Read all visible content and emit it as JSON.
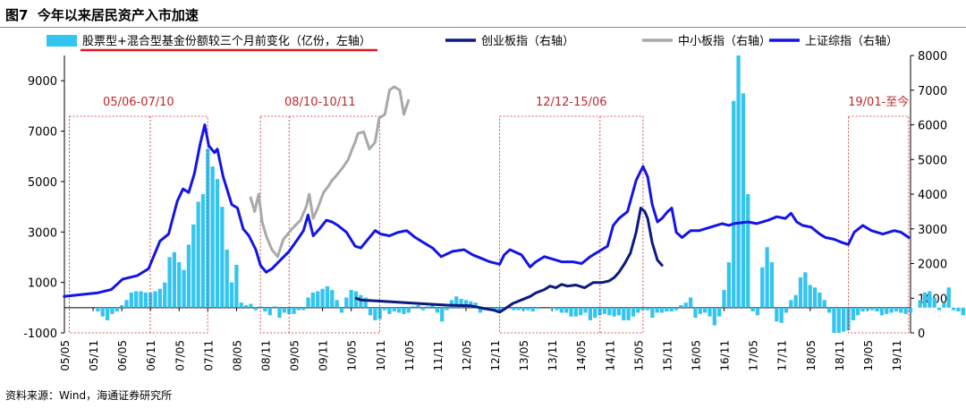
{
  "figure": {
    "title": "图7  今年以来居民资产入市加速",
    "source": "资料来源：Wind，海通证券研究所"
  },
  "chart_data": {
    "type": "bar+line",
    "title": "今年以来居民资产入市加速",
    "x_ticks": [
      "05/05",
      "05/11",
      "06/05",
      "06/11",
      "07/05",
      "07/11",
      "08/05",
      "08/11",
      "09/05",
      "09/11",
      "10/05",
      "10/11",
      "11/05",
      "11/11",
      "12/05",
      "12/11",
      "13/05",
      "13/11",
      "14/05",
      "14/11",
      "15/05",
      "15/11",
      "16/05",
      "16/11",
      "17/05",
      "17/11",
      "18/05",
      "18/11",
      "19/05",
      "19/11"
    ],
    "x_range": [
      2005.333,
      2020.083
    ],
    "left_axis": {
      "label": "亿份，左轴",
      "ylim": [
        -1000,
        10000
      ],
      "ticks": [
        -1000,
        1000,
        3000,
        5000,
        7000,
        9000
      ]
    },
    "right_axis": {
      "label": "右轴",
      "ylim": [
        0,
        8000
      ],
      "ticks": [
        0,
        1000,
        2000,
        3000,
        4000,
        5000,
        6000,
        7000,
        8000
      ]
    },
    "legend": {
      "position": "top",
      "items": [
        {
          "key": "bars",
          "label": "股票型+混合型基金份额较三个月前变化（亿份，左轴）"
        },
        {
          "key": "cyb",
          "label": "创业板指（右轴）"
        },
        {
          "key": "zxb",
          "label": "中小板指（右轴）"
        },
        {
          "key": "szzz",
          "label": "上证综指（右轴）"
        }
      ]
    },
    "colors": {
      "bars": "#33c4ef",
      "cyb": "#0b1a80",
      "zxb": "#a9a9a9",
      "szzz": "#1414e6",
      "box": "#c0282d",
      "annotation": "#c0282d",
      "underline": "#e0181f"
    },
    "annotations": [
      {
        "label": "05/06-07/10",
        "start": 2005.42,
        "end": 2007.83,
        "split": 2006.83
      },
      {
        "label": "08/10-10/11",
        "start": 2008.75,
        "end": 2010.83,
        "split": 2009.25
      },
      {
        "label": "12/12-15/06",
        "start": 2012.92,
        "end": 2015.42,
        "split": 2014.67
      },
      {
        "label": "19/01-至今",
        "start": 2019.0,
        "end": 2020.05,
        "split": null
      }
    ],
    "series": [
      {
        "name": "股票型+混合型基金份额较三个月前变化",
        "key": "bars",
        "axis": "left",
        "type": "bar",
        "x0": 2005.333,
        "step": 0.08333,
        "values": [
          0,
          0,
          0,
          0,
          0,
          0,
          0,
          -150,
          -350,
          -500,
          -250,
          -150,
          100,
          300,
          600,
          650,
          650,
          600,
          600,
          650,
          750,
          1000,
          2000,
          2200,
          1800,
          1500,
          2500,
          3300,
          4200,
          4500,
          6300,
          5600,
          5100,
          4000,
          2300,
          1000,
          1700,
          200,
          100,
          150,
          -100,
          50,
          -150,
          -300,
          50,
          -400,
          -200,
          -250,
          -250,
          -100,
          -100,
          400,
          600,
          650,
          750,
          850,
          700,
          300,
          -200,
          400,
          700,
          650,
          500,
          400,
          -300,
          -500,
          -450,
          -100,
          -250,
          -150,
          -200,
          -250,
          -200,
          50,
          100,
          -100,
          50,
          100,
          -200,
          -550,
          -100,
          300,
          450,
          350,
          300,
          250,
          200,
          -200,
          -100,
          -50,
          -150,
          -150,
          -50,
          0,
          -100,
          -100,
          -100,
          -100,
          -150,
          -50,
          0,
          0,
          -50,
          -100,
          -200,
          -200,
          -350,
          -350,
          -300,
          -200,
          -500,
          -400,
          -300,
          -250,
          -300,
          -350,
          -300,
          -500,
          -500,
          -350,
          -200,
          -100,
          -100,
          -400,
          -200,
          -200,
          -150,
          -150,
          -100,
          100,
          200,
          400,
          -400,
          -250,
          -200,
          -350,
          -700,
          -350,
          700,
          1800,
          8200,
          10000,
          8500,
          4500,
          -150,
          -300,
          1600,
          2400,
          1800,
          -550,
          -600,
          -200,
          300,
          500,
          1200,
          1400,
          900,
          800,
          600,
          300,
          -200,
          -1000,
          -1000,
          -950,
          -900,
          -500,
          -300,
          -150,
          -100,
          -100,
          -150,
          -300,
          -250,
          -200,
          -150,
          -200,
          -250,
          -200,
          0,
          300,
          600,
          650,
          400,
          -100,
          200,
          800,
          -100,
          -150,
          -300,
          -250,
          -300,
          -900,
          -600,
          1200,
          800,
          600,
          1000,
          1200,
          700,
          1200,
          2000,
          3000,
          4500
        ]
      },
      {
        "name": "上证综指",
        "key": "szzz",
        "axis": "right",
        "type": "line",
        "points": [
          [
            2005.33,
            1050
          ],
          [
            2005.6,
            1100
          ],
          [
            2005.9,
            1150
          ],
          [
            2006.15,
            1250
          ],
          [
            2006.35,
            1550
          ],
          [
            2006.6,
            1650
          ],
          [
            2006.8,
            1850
          ],
          [
            2007.0,
            2650
          ],
          [
            2007.15,
            2850
          ],
          [
            2007.3,
            3800
          ],
          [
            2007.4,
            4150
          ],
          [
            2007.5,
            4050
          ],
          [
            2007.6,
            4600
          ],
          [
            2007.7,
            5450
          ],
          [
            2007.78,
            6000
          ],
          [
            2007.85,
            5400
          ],
          [
            2007.95,
            5200
          ],
          [
            2008.0,
            5300
          ],
          [
            2008.1,
            4500
          ],
          [
            2008.25,
            3700
          ],
          [
            2008.35,
            3600
          ],
          [
            2008.45,
            3000
          ],
          [
            2008.55,
            2800
          ],
          [
            2008.67,
            2400
          ],
          [
            2008.75,
            1950
          ],
          [
            2008.85,
            1750
          ],
          [
            2008.95,
            1850
          ],
          [
            2009.1,
            2100
          ],
          [
            2009.25,
            2350
          ],
          [
            2009.4,
            2700
          ],
          [
            2009.5,
            2950
          ],
          [
            2009.58,
            3400
          ],
          [
            2009.67,
            2800
          ],
          [
            2009.78,
            3000
          ],
          [
            2009.9,
            3250
          ],
          [
            2010.0,
            3200
          ],
          [
            2010.1,
            3100
          ],
          [
            2010.25,
            2900
          ],
          [
            2010.4,
            2500
          ],
          [
            2010.5,
            2450
          ],
          [
            2010.6,
            2650
          ],
          [
            2010.75,
            2950
          ],
          [
            2010.85,
            2850
          ],
          [
            2011.0,
            2800
          ],
          [
            2011.15,
            2900
          ],
          [
            2011.3,
            2950
          ],
          [
            2011.45,
            2750
          ],
          [
            2011.6,
            2600
          ],
          [
            2011.75,
            2450
          ],
          [
            2011.9,
            2200
          ],
          [
            2012.1,
            2350
          ],
          [
            2012.3,
            2400
          ],
          [
            2012.45,
            2250
          ],
          [
            2012.6,
            2150
          ],
          [
            2012.75,
            2050
          ],
          [
            2012.92,
            1980
          ],
          [
            2013.0,
            2250
          ],
          [
            2013.1,
            2400
          ],
          [
            2013.3,
            2250
          ],
          [
            2013.45,
            1900
          ],
          [
            2013.55,
            2050
          ],
          [
            2013.7,
            2200
          ],
          [
            2013.9,
            2100
          ],
          [
            2014.0,
            2050
          ],
          [
            2014.2,
            2050
          ],
          [
            2014.35,
            2000
          ],
          [
            2014.5,
            2200
          ],
          [
            2014.65,
            2350
          ],
          [
            2014.8,
            2500
          ],
          [
            2014.9,
            3100
          ],
          [
            2015.0,
            3300
          ],
          [
            2015.15,
            3500
          ],
          [
            2015.3,
            4400
          ],
          [
            2015.42,
            4800
          ],
          [
            2015.5,
            4500
          ],
          [
            2015.58,
            3700
          ],
          [
            2015.67,
            3200
          ],
          [
            2015.75,
            3300
          ],
          [
            2015.85,
            3500
          ],
          [
            2015.92,
            3600
          ],
          [
            2016.0,
            2900
          ],
          [
            2016.1,
            2750
          ],
          [
            2016.25,
            2950
          ],
          [
            2016.4,
            2950
          ],
          [
            2016.6,
            3050
          ],
          [
            2016.8,
            3150
          ],
          [
            2016.92,
            3100
          ],
          [
            2017.0,
            3150
          ],
          [
            2017.25,
            3200
          ],
          [
            2017.4,
            3150
          ],
          [
            2017.6,
            3250
          ],
          [
            2017.75,
            3350
          ],
          [
            2017.9,
            3300
          ],
          [
            2018.0,
            3450
          ],
          [
            2018.1,
            3200
          ],
          [
            2018.2,
            3100
          ],
          [
            2018.35,
            3050
          ],
          [
            2018.5,
            2850
          ],
          [
            2018.6,
            2750
          ],
          [
            2018.75,
            2700
          ],
          [
            2018.9,
            2600
          ],
          [
            2019.0,
            2550
          ],
          [
            2019.1,
            2900
          ],
          [
            2019.25,
            3100
          ],
          [
            2019.4,
            2950
          ],
          [
            2019.6,
            2850
          ],
          [
            2019.8,
            2950
          ],
          [
            2019.92,
            2900
          ],
          [
            2020.05,
            2750
          ]
        ]
      },
      {
        "name": "创业板指",
        "key": "cyb",
        "axis": "right",
        "type": "line",
        "points": [
          [
            2010.42,
            1000
          ],
          [
            2010.5,
            950
          ],
          [
            2011.0,
            900
          ],
          [
            2011.5,
            850
          ],
          [
            2012.0,
            800
          ],
          [
            2012.42,
            780
          ],
          [
            2012.6,
            720
          ],
          [
            2012.83,
            650
          ],
          [
            2012.92,
            600
          ],
          [
            2013.0,
            680
          ],
          [
            2013.15,
            850
          ],
          [
            2013.3,
            950
          ],
          [
            2013.45,
            1050
          ],
          [
            2013.55,
            1150
          ],
          [
            2013.7,
            1250
          ],
          [
            2013.8,
            1350
          ],
          [
            2013.9,
            1300
          ],
          [
            2014.0,
            1400
          ],
          [
            2014.1,
            1350
          ],
          [
            2014.25,
            1380
          ],
          [
            2014.4,
            1300
          ],
          [
            2014.55,
            1450
          ],
          [
            2014.7,
            1450
          ],
          [
            2014.83,
            1500
          ],
          [
            2014.92,
            1600
          ],
          [
            2015.0,
            1750
          ],
          [
            2015.1,
            2000
          ],
          [
            2015.2,
            2300
          ],
          [
            2015.3,
            2900
          ],
          [
            2015.38,
            3600
          ],
          [
            2015.45,
            3500
          ],
          [
            2015.5,
            3300
          ],
          [
            2015.58,
            2600
          ],
          [
            2015.67,
            2100
          ],
          [
            2015.75,
            1950
          ]
        ]
      },
      {
        "name": "中小板指",
        "key": "zxb",
        "axis": "right",
        "type": "line",
        "points": [
          [
            2008.58,
            3900
          ],
          [
            2008.65,
            3500
          ],
          [
            2008.72,
            4000
          ],
          [
            2008.78,
            3200
          ],
          [
            2008.85,
            2800
          ],
          [
            2008.95,
            2400
          ],
          [
            2009.05,
            2200
          ],
          [
            2009.15,
            2700
          ],
          [
            2009.3,
            3000
          ],
          [
            2009.45,
            3250
          ],
          [
            2009.55,
            3650
          ],
          [
            2009.6,
            4000
          ],
          [
            2009.67,
            3300
          ],
          [
            2009.75,
            3600
          ],
          [
            2009.85,
            4050
          ],
          [
            2009.92,
            4200
          ],
          [
            2010.0,
            4400
          ],
          [
            2010.08,
            4550
          ],
          [
            2010.2,
            4800
          ],
          [
            2010.28,
            5000
          ],
          [
            2010.35,
            5300
          ],
          [
            2010.4,
            5500
          ],
          [
            2010.45,
            5750
          ],
          [
            2010.55,
            5800
          ],
          [
            2010.65,
            5300
          ],
          [
            2010.75,
            5500
          ],
          [
            2010.82,
            6200
          ],
          [
            2010.92,
            6300
          ],
          [
            2011.0,
            7000
          ],
          [
            2011.08,
            7100
          ],
          [
            2011.18,
            7000
          ],
          [
            2011.25,
            6300
          ],
          [
            2011.33,
            6700
          ]
        ]
      }
    ]
  }
}
